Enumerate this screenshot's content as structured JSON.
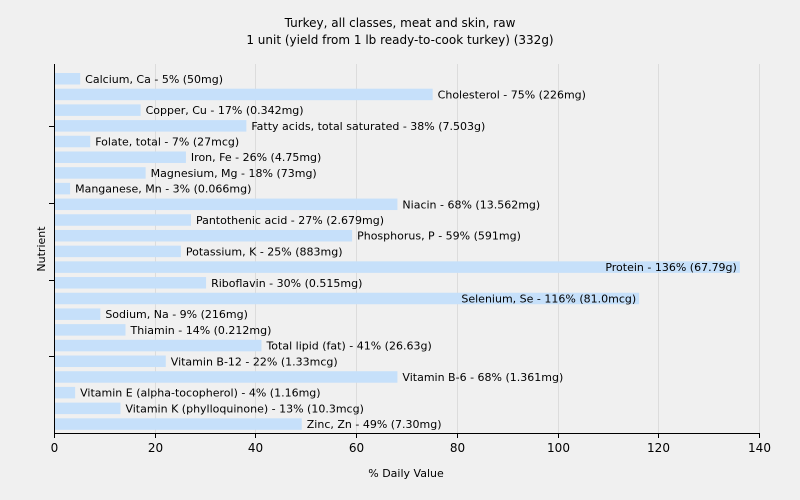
{
  "chart_data": {
    "type": "bar",
    "orientation": "horizontal",
    "title": "Turkey, all classes, meat and skin, raw",
    "subtitle": "1 unit (yield from 1 lb ready-to-cook turkey) (332g)",
    "xlabel": "% Daily Value",
    "ylabel": "Nutrient",
    "xlim": [
      0,
      140
    ],
    "xticks": [
      0,
      20,
      40,
      60,
      80,
      100,
      120,
      140
    ],
    "grid": true,
    "bar_color": "#c6e0fa",
    "categories": [
      "Calcium, Ca",
      "Cholesterol",
      "Copper, Cu",
      "Fatty acids, total saturated",
      "Folate, total",
      "Iron, Fe",
      "Magnesium, Mg",
      "Manganese, Mn",
      "Niacin",
      "Pantothenic acid",
      "Phosphorus, P",
      "Potassium, K",
      "Protein",
      "Riboflavin",
      "Selenium, Se",
      "Sodium, Na",
      "Thiamin",
      "Total lipid (fat)",
      "Vitamin B-12",
      "Vitamin B-6",
      "Vitamin E (alpha-tocopherol)",
      "Vitamin K (phylloquinone)",
      "Zinc, Zn"
    ],
    "values": [
      5,
      75,
      17,
      38,
      7,
      26,
      18,
      3,
      68,
      27,
      59,
      25,
      136,
      30,
      116,
      9,
      14,
      41,
      22,
      68,
      4,
      13,
      49
    ],
    "labels": [
      "Calcium, Ca - 5% (50mg)",
      "Cholesterol - 75% (226mg)",
      "Copper, Cu - 17% (0.342mg)",
      "Fatty acids, total saturated - 38% (7.503g)",
      "Folate, total - 7% (27mcg)",
      "Iron, Fe - 26% (4.75mg)",
      "Magnesium, Mg - 18% (73mg)",
      "Manganese, Mn - 3% (0.066mg)",
      "Niacin - 68% (13.562mg)",
      "Pantothenic acid - 27% (2.679mg)",
      "Phosphorus, P - 59% (591mg)",
      "Potassium, K - 25% (883mg)",
      "Protein - 136% (67.79g)",
      "Riboflavin - 30% (0.515mg)",
      "Selenium, Se - 116% (81.0mcg)",
      "Sodium, Na - 9% (216mg)",
      "Thiamin - 14% (0.212mg)",
      "Total lipid (fat) - 41% (26.63g)",
      "Vitamin B-12 - 22% (1.33mcg)",
      "Vitamin B-6 - 68% (1.361mg)",
      "Vitamin E (alpha-tocopherol) - 4% (1.16mg)",
      "Vitamin K (phylloquinone) - 13% (10.3mcg)",
      "Zinc, Zn - 49% (7.30mg)"
    ]
  }
}
